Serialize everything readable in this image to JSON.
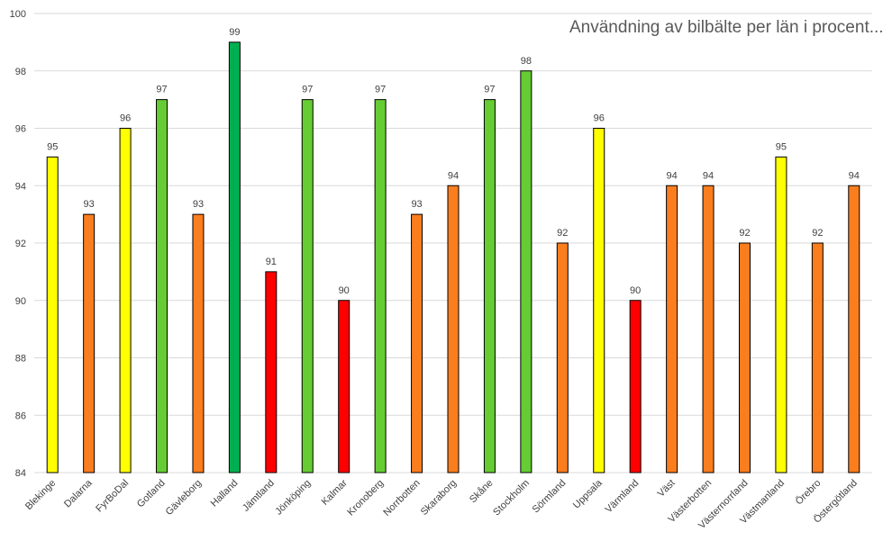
{
  "chart_data": {
    "type": "bar",
    "title": "Användning av bilbälte per län i procent...",
    "ylim": [
      84,
      100
    ],
    "yticks": [
      "84",
      "86",
      "88",
      "90",
      "92",
      "94",
      "96",
      "98",
      "100"
    ],
    "grid": true,
    "categories": [
      "Blekinge",
      "Dalarna",
      "FyrBoDal",
      "Gotland",
      "Gävleborg",
      "Halland",
      "Jämtland",
      "Jönköping",
      "Kalmar",
      "Kronoberg",
      "Norrbotten",
      "Skaraborg",
      "Skåne",
      "Stockholm",
      "Sörmland",
      "Uppsala",
      "Värmland",
      "Väst",
      "Västerbotten",
      "Västernorrland",
      "Västmanland",
      "Örebro",
      "Östergötland"
    ],
    "values": [
      95,
      93,
      96,
      97,
      93,
      99,
      91,
      97,
      90,
      97,
      93,
      94,
      97,
      98,
      92,
      96,
      90,
      94,
      94,
      92,
      95,
      92,
      94
    ],
    "colors": [
      "#ffff00",
      "#fa7d1e",
      "#ffff00",
      "#66cc33",
      "#fa7d1e",
      "#00b050",
      "#ff0000",
      "#66cc33",
      "#ff0000",
      "#66cc33",
      "#fa7d1e",
      "#fa7d1e",
      "#66cc33",
      "#66cc33",
      "#fa7d1e",
      "#ffff00",
      "#ff0000",
      "#fa7d1e",
      "#fa7d1e",
      "#fa7d1e",
      "#ffff00",
      "#fa7d1e",
      "#fa7d1e"
    ]
  }
}
